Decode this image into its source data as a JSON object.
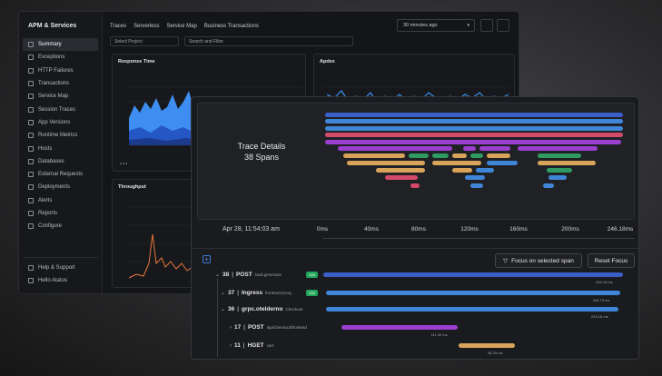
{
  "app": {
    "title": "APM & Services",
    "tabs": [
      "Traces",
      "Serverless",
      "Service Map",
      "Business Transactions"
    ],
    "time_range": "30 minutes ago",
    "select_project": "Select Project",
    "search_filter": "Search and Filter"
  },
  "sidebar": {
    "items": [
      {
        "label": "Summary",
        "icon": "grid-icon",
        "active": true
      },
      {
        "label": "Exceptions",
        "icon": "alert-icon"
      },
      {
        "label": "HTTP Failures",
        "icon": "bolt-icon"
      },
      {
        "label": "Transactions",
        "icon": "exchange-icon"
      },
      {
        "label": "Service Map",
        "icon": "map-icon"
      },
      {
        "label": "Session Traces",
        "icon": "cross-icon"
      },
      {
        "label": "App Versions",
        "icon": "version-icon"
      },
      {
        "label": "Runtime Metrics",
        "icon": "gauge-icon"
      },
      {
        "label": "Hosts",
        "icon": "server-icon"
      },
      {
        "label": "Databases",
        "icon": "database-icon"
      },
      {
        "label": "External Requests",
        "icon": "external-icon"
      },
      {
        "label": "Deployments",
        "icon": "deploy-icon"
      },
      {
        "label": "Alerts",
        "icon": "bell-icon"
      },
      {
        "label": "Reports",
        "icon": "report-icon"
      },
      {
        "label": "Configure",
        "icon": "config-icon"
      }
    ],
    "bottom": [
      {
        "label": "Help & Support",
        "icon": "help-icon"
      },
      {
        "label": "Hello Atatus",
        "icon": "user-icon"
      }
    ]
  },
  "panels": {
    "response_time": "Response Time",
    "apdex": "Apdex",
    "throughput": "Throughput"
  },
  "trace": {
    "title": "Trace Details",
    "spans": "38 Spans",
    "date": "Apr 28, 11:54:03 am",
    "ticks": [
      "0ms",
      "40ms",
      "80ms",
      "120ms",
      "160ms",
      "200ms",
      "246.18ms"
    ],
    "focus_button": "Focus on selected span",
    "reset_button": "Reset Focus",
    "rows": [
      {
        "num": "38",
        "name": "POST",
        "service": "load-generator",
        "badge": "200",
        "start": 0.0,
        "end": 1.0,
        "color": "#3a5fc8",
        "duration": "246.18 ms"
      },
      {
        "num": "37",
        "name": "Ingress",
        "service": "frontend-proxy",
        "badge": "200",
        "start": 0.01,
        "end": 0.99,
        "color": "#3f86d8",
        "duration": "243.73 ms"
      },
      {
        "num": "36",
        "name": "grpc.otelderno",
        "service": "Checkout",
        "badge": "",
        "start": 0.01,
        "end": 0.985,
        "color": "#3f86d8",
        "duration": "243.18 ms"
      },
      {
        "num": "17",
        "name": "POST",
        "service": "/api/checkout/frontend",
        "badge": "",
        "start": 0.06,
        "end": 0.45,
        "color": "#9b3fd1",
        "duration": "111.49 ms"
      },
      {
        "num": "11",
        "name": "HGET",
        "service": "cart",
        "badge": "",
        "start": 0.45,
        "end": 0.64,
        "color": "#d9a35a",
        "duration": "56.25 ms"
      }
    ]
  }
}
